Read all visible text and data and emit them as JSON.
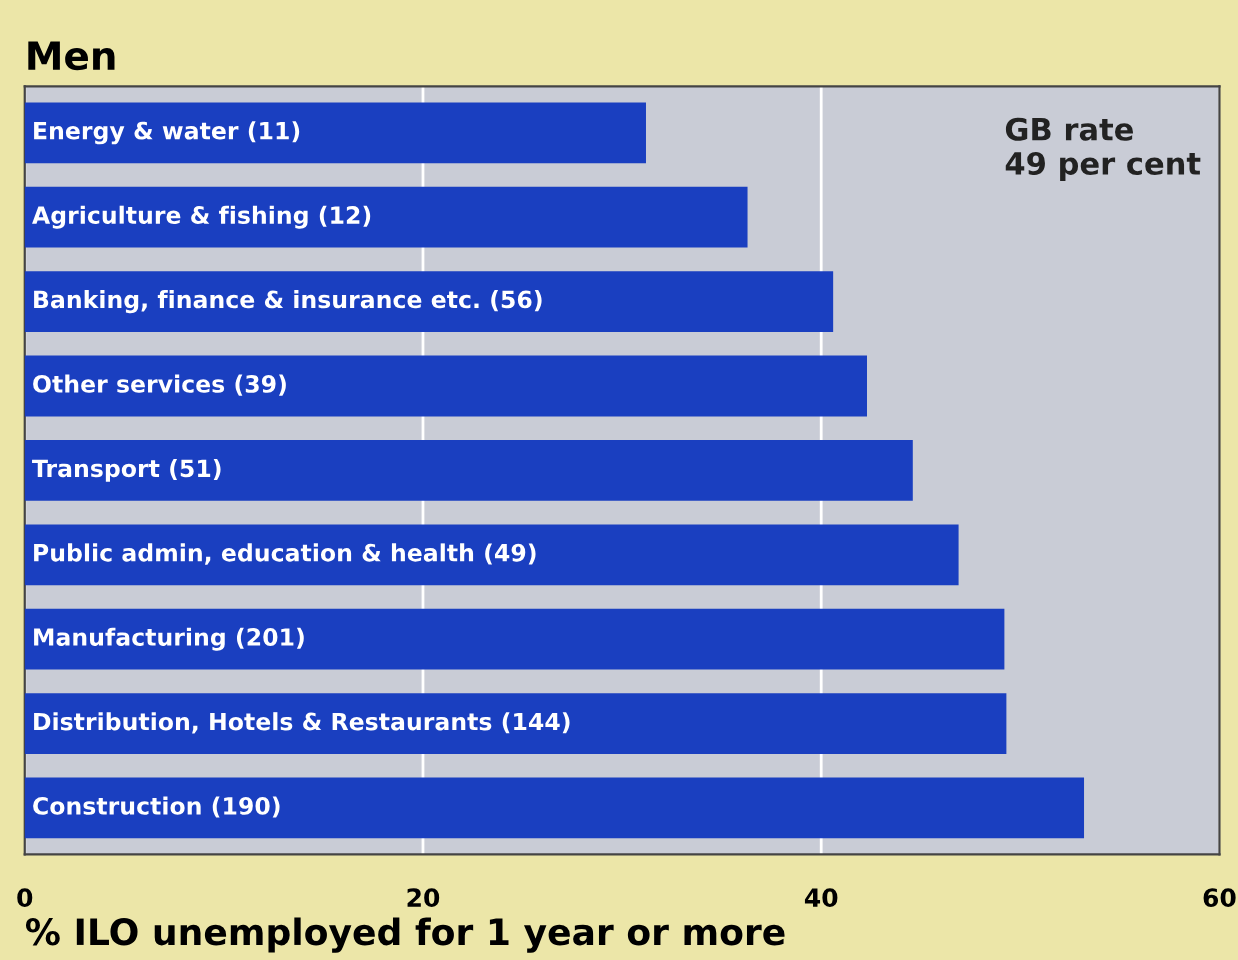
{
  "chart_data": {
    "type": "bar",
    "orientation": "horizontal",
    "title": "Men",
    "xlabel": "% ILO unemployed for 1 year or more",
    "categories": [
      "Energy & water (11)",
      "Agriculture & fishing (12)",
      "Banking, finance & insurance etc. (56)",
      "Other services (39)",
      "Transport (51)",
      "Public admin, education & health (49)",
      "Manufacturing (201)",
      "Distribution, Hotels & Restaurants (144)",
      "Construction (190)"
    ],
    "values": [
      31.2,
      36.3,
      40.6,
      42.3,
      44.6,
      46.9,
      49.2,
      49.3,
      53.2
    ],
    "color": "#1a3fc0",
    "xlim": [
      0,
      60
    ],
    "xticks": [
      0,
      20,
      40,
      60
    ],
    "grid": "x",
    "annotations": [
      "GB rate\n49 per cent"
    ]
  }
}
